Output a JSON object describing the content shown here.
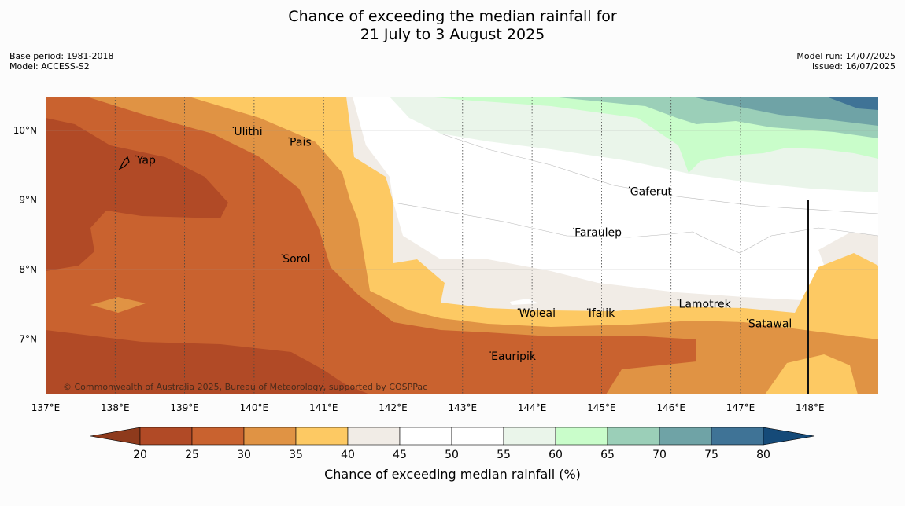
{
  "title_line1": "Chance of exceeding the median rainfall for",
  "title_line2": "21 July to 3 August 2025",
  "meta_left": [
    "Base period: 1981-2018",
    "Model: ACCESS-S2"
  ],
  "meta_right": [
    "Model run: 14/07/2025",
    "Issued: 16/07/2025"
  ],
  "copyright": "© Commonwealth of Australia 2025, Bureau of Meteorology, supported by COSPPac",
  "lon_ticks": [
    "137°E",
    "138°E",
    "139°E",
    "140°E",
    "141°E",
    "142°E",
    "143°E",
    "144°E",
    "145°E",
    "146°E",
    "147°E",
    "148°E"
  ],
  "lat_ticks": [
    "10°N",
    "9°N",
    "8°N",
    "7°N"
  ],
  "places": [
    {
      "name": "Yap",
      "lon": 138.3,
      "lat": 9.52
    },
    {
      "name": "Ulithi",
      "lon": 139.7,
      "lat": 9.93
    },
    {
      "name": "Pais",
      "lon": 140.5,
      "lat": 9.78
    },
    {
      "name": "Sorol",
      "lon": 140.4,
      "lat": 8.1
    },
    {
      "name": "Gaferut",
      "lon": 145.4,
      "lat": 9.07
    },
    {
      "name": "Faraulep",
      "lon": 144.6,
      "lat": 8.48
    },
    {
      "name": "Woleai",
      "lon": 143.8,
      "lat": 7.32
    },
    {
      "name": "Ifalik",
      "lon": 144.8,
      "lat": 7.32
    },
    {
      "name": "Lamotrek",
      "lon": 146.1,
      "lat": 7.45
    },
    {
      "name": "Satawal",
      "lon": 147.1,
      "lat": 7.17
    },
    {
      "name": "Eauripik",
      "lon": 143.4,
      "lat": 6.7
    }
  ],
  "colorbar": {
    "label": "Chance of exceeding median rainfall (%)",
    "ticks": [
      "20",
      "25",
      "30",
      "35",
      "40",
      "45",
      "50",
      "55",
      "60",
      "65",
      "70",
      "75",
      "80"
    ],
    "colors": [
      "#8e3a1c",
      "#b14a26",
      "#c9622f",
      "#e09344",
      "#fdc963",
      "#f1ece6",
      "#ffffff",
      "#ffffff",
      "#eaf5ea",
      "#c9fdca",
      "#9bcfb8",
      "#6fa3a6",
      "#3f7396",
      "#154a78"
    ]
  }
}
